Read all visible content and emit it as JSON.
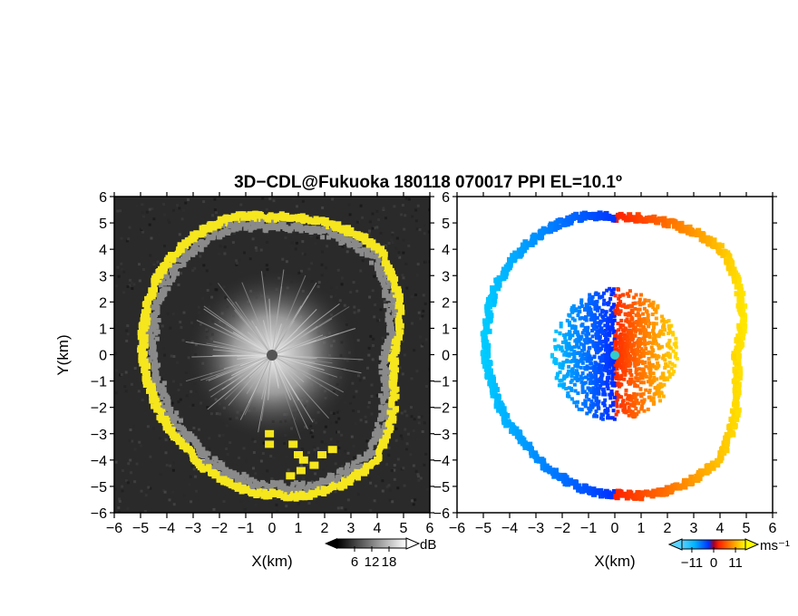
{
  "chart_data": [
    {
      "type": "heatmap",
      "panel": "reflectivity",
      "title": "3D−CDL@Fukuoka 180118 070017 PPI EL=10.1º",
      "xlabel": "X(km)",
      "ylabel": "Y(km)",
      "xlim": [
        -6,
        6
      ],
      "ylim": [
        -6,
        6
      ],
      "xticks": [
        "−6",
        "−5",
        "−4",
        "−3",
        "−2",
        "−1",
        "0",
        "1",
        "2",
        "3",
        "4",
        "5",
        "6"
      ],
      "yticks": [
        "−6",
        "−5",
        "−4",
        "−3",
        "−2",
        "−1",
        "0",
        "1",
        "2",
        "3",
        "4",
        "5",
        "6"
      ],
      "colormap": "grayscale",
      "highlight_color": "#f5e61e",
      "colorbar": {
        "unit": "dB",
        "ticks": [
          "6",
          "12",
          "18"
        ],
        "range": [
          0,
          24
        ]
      },
      "echo_ring_radius_km": [
        4.6,
        5.0,
        5.4,
        5.7,
        5.5,
        5.3,
        5.2,
        5.4,
        5.4,
        5.3,
        5.2,
        5.0,
        4.9,
        4.8,
        4.8,
        4.8,
        5.0,
        5.2,
        5.3,
        5.5,
        5.6,
        5.6,
        5.2,
        4.8
      ],
      "inner_echo_blocks_km": [
        [
          -0.1,
          -3.4
        ],
        [
          -0.1,
          -3.0
        ],
        [
          0.8,
          -3.4
        ],
        [
          1.0,
          -3.8
        ],
        [
          1.2,
          -4.0
        ],
        [
          1.6,
          -4.2
        ],
        [
          1.9,
          -3.8
        ],
        [
          2.3,
          -3.6
        ],
        [
          1.1,
          -4.4
        ],
        [
          0.7,
          -4.6
        ]
      ],
      "radar_site": [
        0,
        0
      ]
    },
    {
      "type": "heatmap",
      "panel": "doppler-velocity",
      "xlabel": "X(km)",
      "xlim": [
        -6,
        6
      ],
      "ylim": [
        -6,
        6
      ],
      "xticks": [
        "−6",
        "−5",
        "−4",
        "−3",
        "−2",
        "−1",
        "0",
        "1",
        "2",
        "3",
        "4",
        "5",
        "6"
      ],
      "yticks": [
        "−6",
        "−5",
        "−4",
        "−3",
        "−2",
        "−1",
        "0",
        "1",
        "2",
        "3",
        "4",
        "5",
        "6"
      ],
      "colormap": "blue-white-red-yellow diverging",
      "colorbar": {
        "unit": "ms⁻¹",
        "ticks": [
          "−11",
          "0",
          "11"
        ],
        "range": [
          -16,
          16
        ]
      },
      "radar_site": [
        0,
        0
      ],
      "velocity_pattern": "negative (blue) west, positive (red/yellow) east"
    }
  ]
}
